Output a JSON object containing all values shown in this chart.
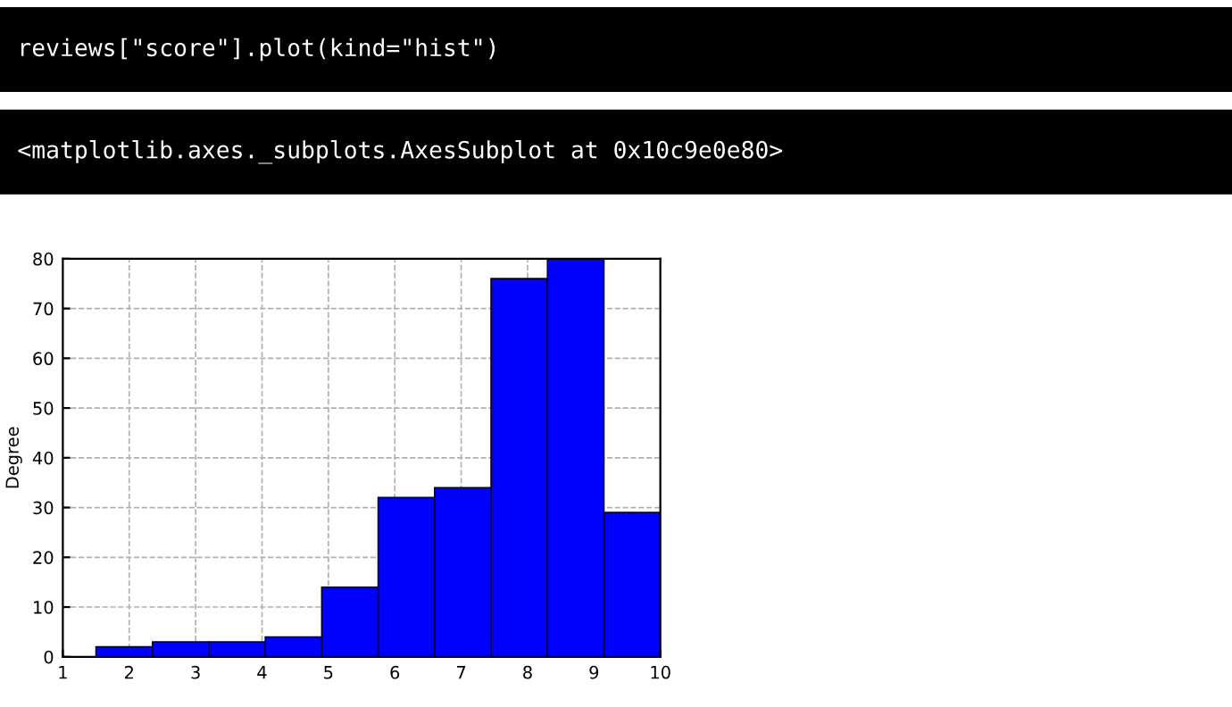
{
  "chart_data": {
    "type": "histogram",
    "annotations": [
      "reviews[\"score\"].plot(kind=\"hist\")",
      "<matplotlib.axes._subplots.AxesSubplot at 0x10c9e0e80>"
    ],
    "ylabel": "Degree",
    "bins": [
      1.5,
      2.35,
      3.2,
      4.05,
      4.9,
      5.75,
      6.6,
      7.45,
      8.3,
      9.15,
      10.0
    ],
    "values": [
      2,
      3,
      3,
      4,
      14,
      32,
      34,
      76,
      80,
      29
    ],
    "color": "#0000ff",
    "xlim": [
      1,
      10
    ],
    "xticks": [
      1,
      2,
      3,
      4,
      5,
      6,
      7,
      8,
      9,
      10
    ],
    "ylim": [
      0,
      80
    ],
    "yticks": [
      0,
      10,
      20,
      30,
      40,
      50,
      60,
      70,
      80
    ],
    "grid": true
  }
}
